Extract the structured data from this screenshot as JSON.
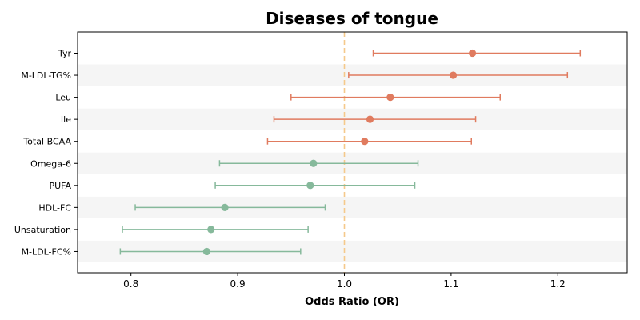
{
  "chart_data": {
    "type": "forest",
    "title": "Diseases of tongue",
    "xlabel": "Odds Ratio (OR)",
    "ylabel": "",
    "xlim": [
      0.75,
      1.265
    ],
    "xticks": [
      0.8,
      0.9,
      1.0,
      1.1,
      1.2
    ],
    "xtick_labels": [
      "0.8",
      "0.9",
      "1.0",
      "1.1",
      "1.2"
    ],
    "reference_line": 1.0,
    "reference_color": "#f5c98b",
    "grid": false,
    "row_shading": "alternating",
    "colors": {
      "risk": "#e07b5f",
      "protective": "#86b99b"
    },
    "rows": [
      {
        "label": "Tyr",
        "or": 1.12,
        "lower": 1.027,
        "upper": 1.221,
        "group": "risk"
      },
      {
        "label": "M-LDL-TG%",
        "or": 1.102,
        "lower": 1.004,
        "upper": 1.209,
        "group": "risk"
      },
      {
        "label": "Leu",
        "or": 1.043,
        "lower": 0.95,
        "upper": 1.146,
        "group": "risk"
      },
      {
        "label": "Ile",
        "or": 1.024,
        "lower": 0.934,
        "upper": 1.123,
        "group": "risk"
      },
      {
        "label": "Total-BCAA",
        "or": 1.019,
        "lower": 0.928,
        "upper": 1.119,
        "group": "risk"
      },
      {
        "label": "Omega-6",
        "or": 0.971,
        "lower": 0.883,
        "upper": 1.069,
        "group": "protective"
      },
      {
        "label": "PUFA",
        "or": 0.968,
        "lower": 0.879,
        "upper": 1.066,
        "group": "protective"
      },
      {
        "label": "HDL-FC",
        "or": 0.888,
        "lower": 0.804,
        "upper": 0.982,
        "group": "protective"
      },
      {
        "label": "Unsaturation",
        "or": 0.875,
        "lower": 0.792,
        "upper": 0.966,
        "group": "protective"
      },
      {
        "label": "M-LDL-FC%",
        "or": 0.871,
        "lower": 0.79,
        "upper": 0.959,
        "group": "protective"
      }
    ]
  }
}
